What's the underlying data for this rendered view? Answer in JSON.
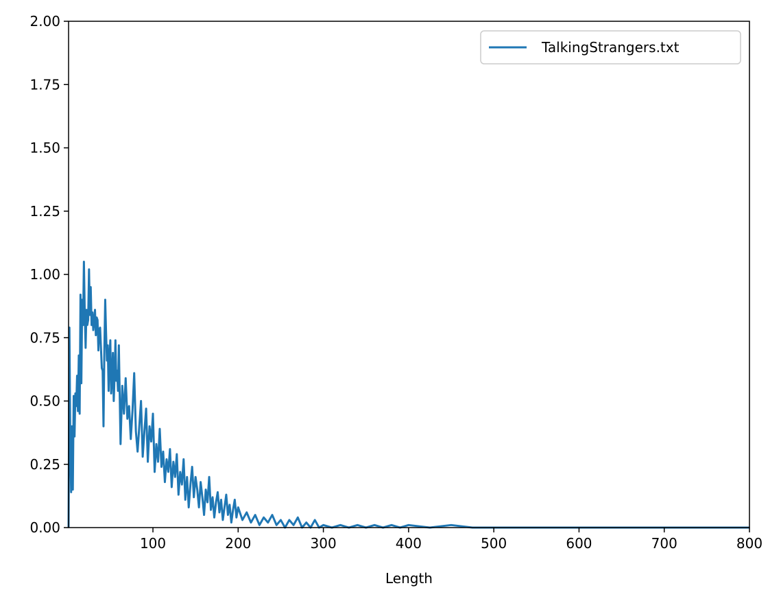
{
  "chart_data": {
    "type": "line",
    "title": "",
    "xlabel": "Length",
    "ylabel": "",
    "xlim": [
      1,
      800
    ],
    "ylim": [
      0,
      2.0
    ],
    "x_ticks": [
      100,
      200,
      300,
      400,
      500,
      600,
      700,
      800
    ],
    "x_tick_labels": [
      "100",
      "200",
      "300",
      "400",
      "500",
      "600",
      "700",
      "800"
    ],
    "y_ticks": [
      0,
      0.25,
      0.5,
      0.75,
      1.0,
      1.25,
      1.5,
      1.75,
      2.0
    ],
    "y_tick_labels": [
      "0.00",
      "0.25",
      "0.50",
      "0.75",
      "1.00",
      "1.25",
      "1.50",
      "1.75",
      "2.00"
    ],
    "grid": false,
    "legend_position": "top-right",
    "colors": {
      "series": "#1f77b4"
    },
    "series": [
      {
        "name": "TalkingStrangers.txt",
        "points": [
          [
            1,
            0.0
          ],
          [
            2,
            0.79
          ],
          [
            3,
            0.35
          ],
          [
            4,
            0.14
          ],
          [
            5,
            0.4
          ],
          [
            6,
            0.15
          ],
          [
            7,
            0.52
          ],
          [
            8,
            0.36
          ],
          [
            9,
            0.53
          ],
          [
            10,
            0.48
          ],
          [
            11,
            0.6
          ],
          [
            12,
            0.46
          ],
          [
            13,
            0.68
          ],
          [
            14,
            0.45
          ],
          [
            15,
            0.92
          ],
          [
            16,
            0.57
          ],
          [
            17,
            0.9
          ],
          [
            18,
            0.8
          ],
          [
            19,
            1.05
          ],
          [
            20,
            0.85
          ],
          [
            21,
            0.71
          ],
          [
            22,
            0.86
          ],
          [
            23,
            0.8
          ],
          [
            24,
            0.82
          ],
          [
            25,
            1.02
          ],
          [
            26,
            0.84
          ],
          [
            27,
            0.95
          ],
          [
            28,
            0.8
          ],
          [
            29,
            0.85
          ],
          [
            30,
            0.78
          ],
          [
            31,
            0.82
          ],
          [
            32,
            0.86
          ],
          [
            33,
            0.76
          ],
          [
            34,
            0.83
          ],
          [
            35,
            0.82
          ],
          [
            36,
            0.7
          ],
          [
            37,
            0.78
          ],
          [
            38,
            0.79
          ],
          [
            39,
            0.71
          ],
          [
            40,
            0.63
          ],
          [
            41,
            0.62
          ],
          [
            42,
            0.4
          ],
          [
            43,
            0.7
          ],
          [
            44,
            0.9
          ],
          [
            45,
            0.77
          ],
          [
            46,
            0.66
          ],
          [
            47,
            0.72
          ],
          [
            48,
            0.54
          ],
          [
            49,
            0.67
          ],
          [
            50,
            0.74
          ],
          [
            51,
            0.53
          ],
          [
            52,
            0.59
          ],
          [
            53,
            0.69
          ],
          [
            54,
            0.5
          ],
          [
            55,
            0.6
          ],
          [
            56,
            0.74
          ],
          [
            57,
            0.58
          ],
          [
            58,
            0.62
          ],
          [
            59,
            0.54
          ],
          [
            60,
            0.72
          ],
          [
            62,
            0.33
          ],
          [
            64,
            0.56
          ],
          [
            66,
            0.45
          ],
          [
            68,
            0.59
          ],
          [
            70,
            0.43
          ],
          [
            72,
            0.48
          ],
          [
            74,
            0.35
          ],
          [
            76,
            0.46
          ],
          [
            78,
            0.61
          ],
          [
            80,
            0.38
          ],
          [
            82,
            0.3
          ],
          [
            84,
            0.4
          ],
          [
            86,
            0.5
          ],
          [
            88,
            0.28
          ],
          [
            90,
            0.38
          ],
          [
            92,
            0.47
          ],
          [
            94,
            0.26
          ],
          [
            96,
            0.4
          ],
          [
            98,
            0.34
          ],
          [
            100,
            0.45
          ],
          [
            102,
            0.22
          ],
          [
            104,
            0.33
          ],
          [
            106,
            0.26
          ],
          [
            108,
            0.39
          ],
          [
            110,
            0.24
          ],
          [
            112,
            0.3
          ],
          [
            114,
            0.18
          ],
          [
            116,
            0.27
          ],
          [
            118,
            0.22
          ],
          [
            120,
            0.31
          ],
          [
            122,
            0.16
          ],
          [
            124,
            0.26
          ],
          [
            126,
            0.2
          ],
          [
            128,
            0.29
          ],
          [
            130,
            0.13
          ],
          [
            132,
            0.22
          ],
          [
            134,
            0.17
          ],
          [
            136,
            0.27
          ],
          [
            138,
            0.11
          ],
          [
            140,
            0.2
          ],
          [
            142,
            0.08
          ],
          [
            144,
            0.17
          ],
          [
            146,
            0.24
          ],
          [
            148,
            0.12
          ],
          [
            150,
            0.2
          ],
          [
            152,
            0.15
          ],
          [
            154,
            0.08
          ],
          [
            156,
            0.18
          ],
          [
            158,
            0.12
          ],
          [
            160,
            0.05
          ],
          [
            162,
            0.15
          ],
          [
            164,
            0.1
          ],
          [
            166,
            0.2
          ],
          [
            168,
            0.07
          ],
          [
            170,
            0.12
          ],
          [
            172,
            0.04
          ],
          [
            174,
            0.1
          ],
          [
            176,
            0.14
          ],
          [
            178,
            0.06
          ],
          [
            180,
            0.11
          ],
          [
            182,
            0.03
          ],
          [
            184,
            0.08
          ],
          [
            186,
            0.13
          ],
          [
            188,
            0.05
          ],
          [
            190,
            0.09
          ],
          [
            192,
            0.02
          ],
          [
            194,
            0.07
          ],
          [
            196,
            0.11
          ],
          [
            198,
            0.04
          ],
          [
            200,
            0.08
          ],
          [
            205,
            0.03
          ],
          [
            210,
            0.06
          ],
          [
            215,
            0.02
          ],
          [
            220,
            0.05
          ],
          [
            225,
            0.01
          ],
          [
            230,
            0.04
          ],
          [
            235,
            0.02
          ],
          [
            240,
            0.05
          ],
          [
            245,
            0.01
          ],
          [
            250,
            0.03
          ],
          [
            255,
            0.0
          ],
          [
            260,
            0.03
          ],
          [
            265,
            0.01
          ],
          [
            270,
            0.04
          ],
          [
            275,
            0.0
          ],
          [
            280,
            0.02
          ],
          [
            285,
            0.0
          ],
          [
            290,
            0.03
          ],
          [
            295,
            0.0
          ],
          [
            300,
            0.01
          ],
          [
            310,
            0.0
          ],
          [
            320,
            0.01
          ],
          [
            330,
            0.0
          ],
          [
            340,
            0.01
          ],
          [
            350,
            0.0
          ],
          [
            360,
            0.01
          ],
          [
            370,
            0.0
          ],
          [
            380,
            0.01
          ],
          [
            390,
            0.0
          ],
          [
            400,
            0.01
          ],
          [
            425,
            0.0
          ],
          [
            450,
            0.01
          ],
          [
            475,
            0.0
          ],
          [
            500,
            0.0
          ],
          [
            550,
            0.0
          ],
          [
            600,
            0.0
          ],
          [
            650,
            0.0
          ],
          [
            700,
            0.0
          ],
          [
            750,
            0.0
          ],
          [
            800,
            0.0
          ]
        ]
      }
    ]
  }
}
